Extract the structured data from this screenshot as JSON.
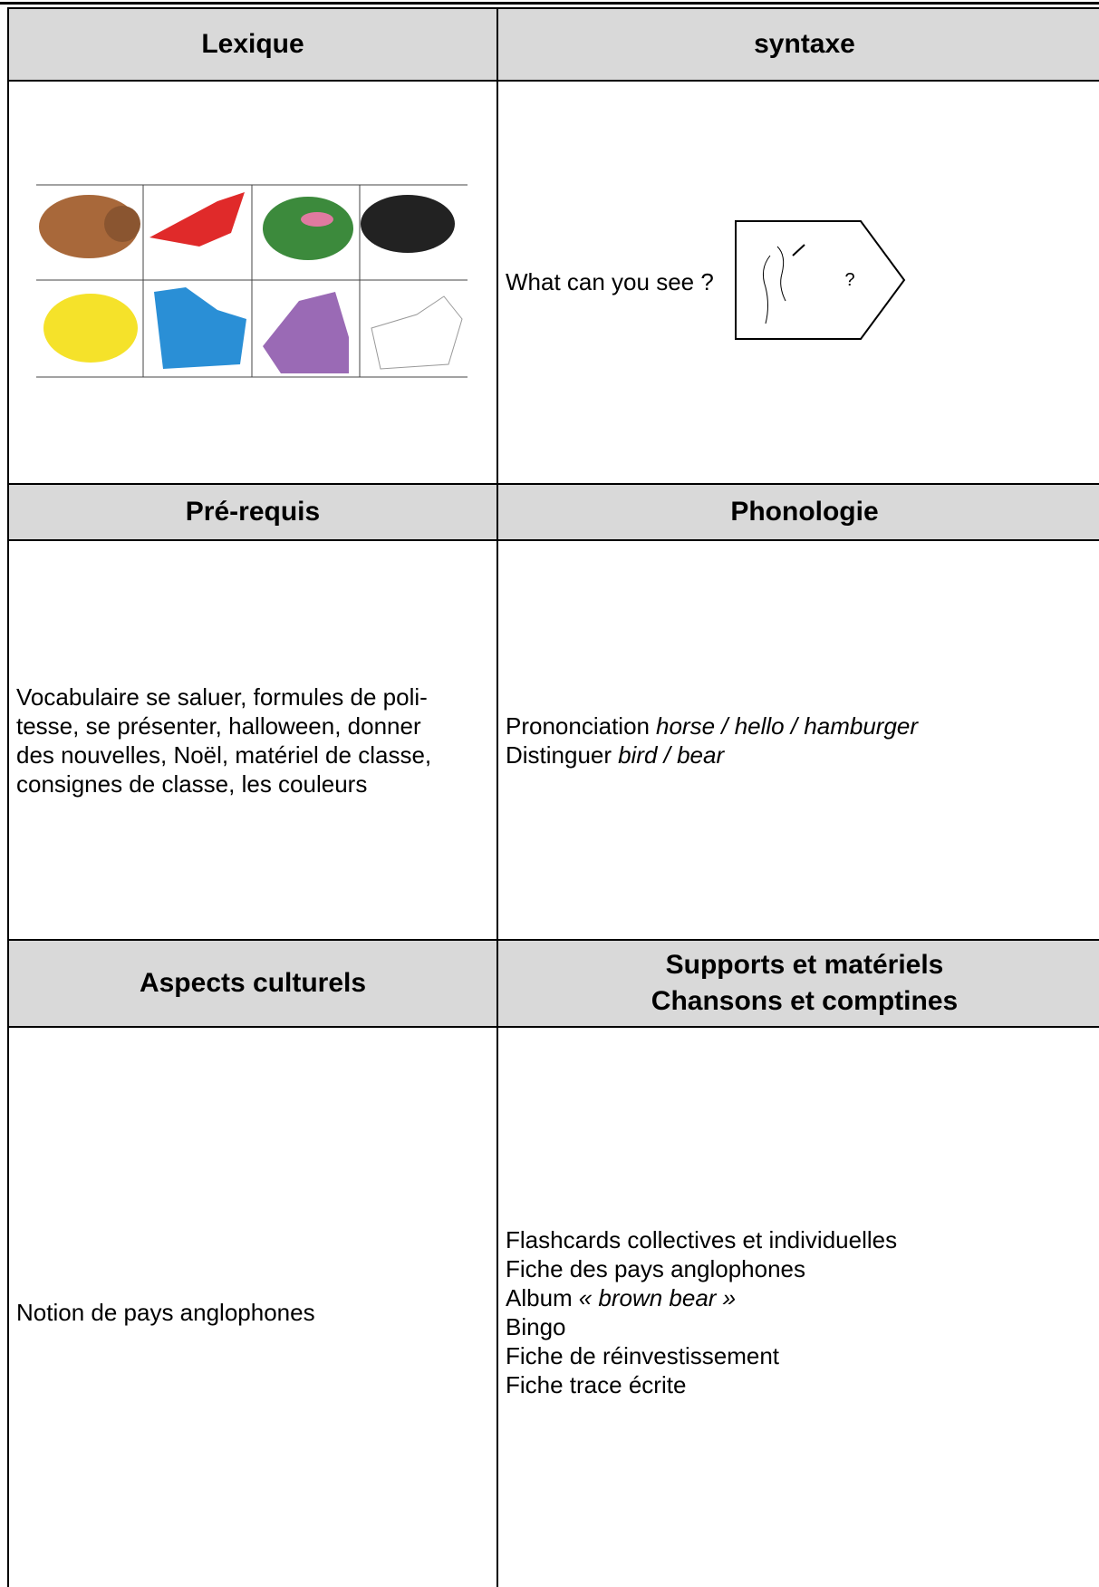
{
  "table": {
    "headers": [
      [
        "Lexique",
        "syntaxe"
      ],
      [
        "Pré-requis",
        "Phonologie"
      ],
      [
        "Aspects culturels",
        [
          "Supports et matériels",
          "Chansons et comptines"
        ]
      ]
    ],
    "syntax": {
      "sentence": "What can you see ?",
      "symbol": "?"
    },
    "prerequis": [
      "Vocabulaire se saluer, formules de poli-",
      "tesse, se présenter, halloween, donner",
      "des nouvelles, Noël, matériel de classe,",
      "consignes de classe, les couleurs"
    ],
    "phonologie": [
      {
        "plain": "Prononciation",
        "italic": "horse / hello / hamburger"
      },
      {
        "plain": "Distinguer",
        "italic": "bird / bear"
      }
    ],
    "culture": "Notion de pays anglophones",
    "supports": [
      {
        "plain": "Flashcards collectives et individuelles"
      },
      {
        "plain": "Fiche des pays anglophones"
      },
      {
        "plain": "Album",
        "italic": "« brown bear »"
      },
      {
        "plain": "Bingo"
      },
      {
        "plain": "Fiche de réinvestissement"
      },
      {
        "plain": "Fiche trace écrite"
      }
    ]
  }
}
